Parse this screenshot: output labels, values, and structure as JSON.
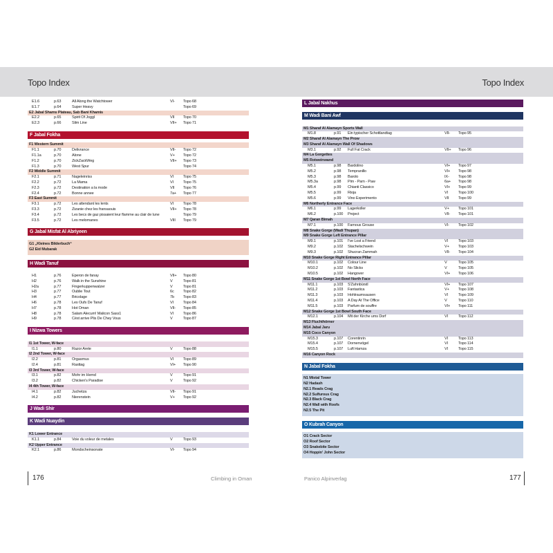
{
  "header": {
    "left_title": "Topo Index",
    "right_title": "Topo Index",
    "color": "#dcdcde"
  },
  "footer": {
    "left_page": "176",
    "left_text": "Climbing in Oman",
    "right_text": "Panico Alpinverlag",
    "right_page": "177"
  },
  "left_sections": [
    {
      "title": "",
      "color": "",
      "tint": "#f3d6cb",
      "rows": [
        {
          "type": "entry",
          "code": "E1.6",
          "page": "p.63",
          "name": "All Along the Watchtower",
          "grade": "VI-",
          "topo": "Topo 68"
        },
        {
          "type": "entry",
          "code": "E1.7",
          "page": "p.64",
          "name": "Super Heavy",
          "grade": "",
          "topo": "Topo 69"
        },
        {
          "type": "sub",
          "label": "E2 Jabal Shams Plateau, Sab Bani Khamis"
        },
        {
          "type": "entry",
          "code": "E2.2",
          "page": "p.65",
          "name": "Spirit Of Joggl",
          "grade": "VII",
          "topo": "Topo 70"
        },
        {
          "type": "entry",
          "code": "E2.3",
          "page": "p.66",
          "name": "Slim Line",
          "grade": "VII+",
          "topo": "Topo 71"
        }
      ]
    },
    {
      "title": "F Jabal Fokha",
      "color": "#b3122e",
      "tint": "#f3d6cb",
      "rows": [
        {
          "type": "sub",
          "label": "F1 Western Summit"
        },
        {
          "type": "entry",
          "code": "F1.1",
          "page": "p.70",
          "name": "Delivrance",
          "grade": "VII-",
          "topo": "Topo 72"
        },
        {
          "type": "entry",
          "code": "F1.1a",
          "page": "p.70",
          "name": "Alone",
          "grade": "V+",
          "topo": "Topo 72"
        },
        {
          "type": "entry",
          "code": "F1.2",
          "page": "p.70",
          "name": "ZickZackWeg",
          "grade": "VII+",
          "topo": "Topo 73"
        },
        {
          "type": "entry",
          "code": "F1.3",
          "page": "p.70",
          "name": "West Spur",
          "grade": "",
          "topo": "Topo 74"
        },
        {
          "type": "sub",
          "label": "F2 Middle Summit"
        },
        {
          "type": "entry",
          "code": "F2.1",
          "page": "p.71",
          "name": "Nageleinriss",
          "grade": "VI",
          "topo": "Topo 75"
        },
        {
          "type": "entry",
          "code": "F2.2",
          "page": "p.72",
          "name": "La Mama",
          "grade": "VI",
          "topo": "Topo 75"
        },
        {
          "type": "entry",
          "code": "F2.3",
          "page": "p.72",
          "name": "Destination a la mode",
          "grade": "VII",
          "topo": "Topo 76"
        },
        {
          "type": "entry",
          "code": "F2.4",
          "page": "p.72",
          "name": "Bonne annee",
          "grade": "7a+",
          "topo": "Topo 77"
        },
        {
          "type": "sub",
          "label": "F3 East Summit"
        },
        {
          "type": "entry",
          "code": "F3.1",
          "page": "p.72",
          "name": "Les attendant les lents",
          "grade": "VI",
          "topo": "Topo 78"
        },
        {
          "type": "entry",
          "code": "F3.3",
          "page": "p.72",
          "name": "Zizanie chez les fransaouis",
          "grade": "VII+",
          "topo": "Topo 78"
        },
        {
          "type": "entry",
          "code": "F3.4",
          "page": "p.72",
          "name": "Les becs de gaz pissaient leur flamme au clair de lune",
          "grade": "",
          "topo": "Topo 79"
        },
        {
          "type": "entry",
          "code": "F3.5",
          "page": "p.72",
          "name": "Les melomanes",
          "grade": "VIII",
          "topo": "Topo 79"
        }
      ]
    },
    {
      "title": "G Jabal Misfat Al Abriyeen",
      "color": "#a3132f",
      "tint": "#f0d3c6",
      "block": true,
      "rows": [
        {
          "type": "sub",
          "label": "G1 „Kleines Bilderbuch“"
        },
        {
          "type": "sub",
          "label": "G2 Eid Mubarak"
        }
      ]
    },
    {
      "title": "H Wadi Tanuf",
      "color": "#8c1240",
      "tint": "",
      "lead": true,
      "rows": [
        {
          "type": "entry",
          "code": "H1",
          "page": "p.76",
          "name": "Eperon de fanay",
          "grade": "VII+",
          "topo": "Topo 80"
        },
        {
          "type": "entry",
          "code": "H2",
          "page": "p.76",
          "name": "Walk in the Sunshine",
          "grade": "V",
          "topo": "Topo 81"
        },
        {
          "type": "entry",
          "code": "H2a",
          "page": "p.77",
          "name": "Fingerkuppenwalzer",
          "grade": "V",
          "topo": "Topo 81"
        },
        {
          "type": "entry",
          "code": "H3",
          "page": "p.77",
          "name": "Oublie Tout",
          "grade": "6c",
          "topo": "Topo 82"
        },
        {
          "type": "entry",
          "code": "H4",
          "page": "p.77",
          "name": "Bricolage",
          "grade": "7b",
          "topo": "Topo 83"
        },
        {
          "type": "entry",
          "code": "H6",
          "page": "p.78",
          "name": "Les Oufs De Tanuf",
          "grade": "VI",
          "topo": "Topo 84"
        },
        {
          "type": "entry",
          "code": "H7",
          "page": "p.78",
          "name": "Hot Oman",
          "grade": "VII-",
          "topo": "Topo 85"
        },
        {
          "type": "entry",
          "code": "H8",
          "page": "p.78",
          "name": "Salam Alecum! Malicon Sass1",
          "grade": "VI",
          "topo": "Topo 86"
        },
        {
          "type": "entry",
          "code": "H9",
          "page": "p.78",
          "name": "Cést arrive Plis De Chey Vous",
          "grade": "V",
          "topo": "Topo 87"
        }
      ]
    },
    {
      "title": "I Nizwa Towers",
      "color": "#8e1a5f",
      "tint": "#e9d6e3",
      "lead": true,
      "rows": [
        {
          "type": "sub",
          "label": "I1 1st Tower, W-face"
        },
        {
          "type": "entry",
          "code": "I1.1",
          "page": "p.80",
          "name": "Razor Arete",
          "grade": "V",
          "topo": "Topo 88"
        },
        {
          "type": "sub",
          "label": "I2 2nd Tower, W-face"
        },
        {
          "type": "entry",
          "code": "I2.2",
          "page": "p.81",
          "name": "Orgasmus",
          "grade": "VI",
          "topo": "Topo 89"
        },
        {
          "type": "entry",
          "code": "I2.4",
          "page": "p.81",
          "name": "Rasttag",
          "grade": "VI+",
          "topo": "Topo 90"
        },
        {
          "type": "sub",
          "label": "I3 3rd Tower, W-face"
        },
        {
          "type": "entry",
          "code": "I3.1",
          "page": "p.82",
          "name": "Mohr im Hemd",
          "grade": "V",
          "topo": "Topo 91"
        },
        {
          "type": "entry",
          "code": "I3.2",
          "page": "p.82",
          "name": "Chicken's Paradise",
          "grade": "V",
          "topo": "Topo 92"
        },
        {
          "type": "sub",
          "label": "I4 4th Tower, W-face"
        },
        {
          "type": "entry",
          "code": "I4.1",
          "page": "p.82",
          "name": "Juchetza",
          "grade": "VII-",
          "topo": "Topo 91"
        },
        {
          "type": "entry",
          "code": "I4.2",
          "page": "p.82",
          "name": "Nierenstein",
          "grade": "V+",
          "topo": "Topo 92"
        }
      ]
    },
    {
      "title": "J Wadi Shir",
      "color": "#7a1d71",
      "tint": "",
      "rows": []
    },
    {
      "title": "K Wadi Nuaydin",
      "color": "#5b3d7c",
      "tint": "#ddd9e8",
      "lead": true,
      "rows": [
        {
          "type": "sub",
          "label": "K1 Lower Entrance"
        },
        {
          "type": "entry",
          "code": "K1.1",
          "page": "p.84",
          "name": "Voie du voleur de metales",
          "grade": "V",
          "topo": "Topo 93"
        },
        {
          "type": "sub",
          "label": "K2 Upper Entrance"
        },
        {
          "type": "entry",
          "code": "K2.1",
          "page": "p.86",
          "name": "Mondscheinsonate",
          "grade": "VI-",
          "topo": "Topo 94"
        }
      ]
    }
  ],
  "right_sections": [
    {
      "title": "L Jabal Nakhus",
      "color": "#5b1a5f",
      "tint": "",
      "rows": []
    },
    {
      "title": "M Wadi Bani Awf",
      "color": "#1f3561",
      "tint": "#d1d0de",
      "lead": true,
      "rows": [
        {
          "type": "sub",
          "label": "M1 Sharaf Al Alamayn Sports Wall"
        },
        {
          "type": "entry",
          "code": "M1.8",
          "page": "p.91",
          "name": "Ein typischer Schottlandtag",
          "grade": "VII-",
          "topo": "Topo 95"
        },
        {
          "type": "sub",
          "label": "M2 Sharaf Al Alamayn The Prow"
        },
        {
          "type": "sub",
          "label": "M3 Sharaf Al Alamayn Wall Of Shadows"
        },
        {
          "type": "entry",
          "code": "M3.1",
          "page": "p.92",
          "name": "Full Fat Crack",
          "grade": "VII+",
          "topo": "Topo 96"
        },
        {
          "type": "sub",
          "label": "M4 La Gorgettes"
        },
        {
          "type": "sub",
          "label": "M5 Rotweinwand"
        },
        {
          "type": "entry",
          "code": "M5.1",
          "page": "p.98",
          "name": "Bardolino",
          "grade": "VI+",
          "topo": "Topo 97"
        },
        {
          "type": "entry",
          "code": "M5.2",
          "page": "p.98",
          "name": "Tempranillo",
          "grade": "VI+",
          "topo": "Topo 98"
        },
        {
          "type": "entry",
          "code": "M5.3",
          "page": "p.98",
          "name": "Barolo",
          "grade": "IX-",
          "topo": "Topo 98"
        },
        {
          "type": "entry",
          "code": "M5.3a",
          "page": "p.98",
          "name": "Pim - Pam - Paw",
          "grade": "6a+",
          "topo": "Topo 98"
        },
        {
          "type": "entry",
          "code": "M5.4",
          "page": "p.99",
          "name": "Chianti Classico",
          "grade": "VI+",
          "topo": "Topo 99"
        },
        {
          "type": "entry",
          "code": "M5.5",
          "page": "p.99",
          "name": "Rioja",
          "grade": "VI",
          "topo": "Topo 100"
        },
        {
          "type": "entry",
          "code": "M5.6",
          "page": "p.99",
          "name": "Vino Experimento",
          "grade": "VII",
          "topo": "Topo 99"
        },
        {
          "type": "sub",
          "label": "M6 Northerly Entrance Face"
        },
        {
          "type": "entry",
          "code": "M6.1",
          "page": "p.99",
          "name": "Lagerkoller",
          "grade": "V+",
          "topo": "Topo 101"
        },
        {
          "type": "entry",
          "code": "M6.2",
          "page": "p.100",
          "name": "Project",
          "grade": "VII-",
          "topo": "Topo 101"
        },
        {
          "type": "sub",
          "label": "M7 Qaran Bimah"
        },
        {
          "type": "entry",
          "code": "M7.1",
          "page": "p.100",
          "name": "Famous Grouse",
          "grade": "VI-",
          "topo": "Topo 102"
        },
        {
          "type": "sub",
          "label": "M8 Snake Gorge (Wadi Thupan)"
        },
        {
          "type": "sub",
          "label": "M9 Snake Gorge Left Entrance Pillar"
        },
        {
          "type": "entry",
          "code": "M9.1",
          "page": "p.101",
          "name": "I've Lost a Friend",
          "grade": "VI",
          "topo": "Topo 103"
        },
        {
          "type": "entry",
          "code": "M9.2",
          "page": "p.102",
          "name": "Stachelschwein",
          "grade": "V+",
          "topo": "Topo 103"
        },
        {
          "type": "entry",
          "code": "M9.3",
          "page": "p.102",
          "name": "Shucran Zammah",
          "grade": "VII-",
          "topo": "Topo 104"
        },
        {
          "type": "sub",
          "label": "M10 Snake Gorge Right Entrance Pillar"
        },
        {
          "type": "entry",
          "code": "M10.1",
          "page": "p.102",
          "name": "Colour Line",
          "grade": "V",
          "topo": "Topo 105"
        },
        {
          "type": "entry",
          "code": "M10.2",
          "page": "p.102",
          "name": "No Slicks",
          "grade": "V",
          "topo": "Topo 105"
        },
        {
          "type": "entry",
          "code": "M10.5",
          "page": "p.102",
          "name": "Hangover",
          "grade": "VI+",
          "topo": "Topo 106"
        },
        {
          "type": "sub",
          "label": "M11 Snake Gorge 1st Bowl North Face"
        },
        {
          "type": "entry",
          "code": "M11.1",
          "page": "p.103",
          "name": "S'Zahnbürstl",
          "grade": "VI+",
          "topo": "Topo 107"
        },
        {
          "type": "entry",
          "code": "M11.2",
          "page": "p.103",
          "name": "Fantastica",
          "grade": "V+",
          "topo": "Topo 108"
        },
        {
          "type": "entry",
          "code": "M11.3",
          "page": "p.103",
          "name": "Hohlraumsausen",
          "grade": "VI",
          "topo": "Topo 109"
        },
        {
          "type": "entry",
          "code": "M11.4",
          "page": "p.103",
          "name": "A Day At The Office",
          "grade": "V",
          "topo": "Topo 110"
        },
        {
          "type": "entry",
          "code": "M11.5",
          "page": "p.103",
          "name": "Parfum de souffre",
          "grade": "VI+",
          "topo": "Topo 111"
        },
        {
          "type": "sub",
          "label": "M12 Snake Gorge 1st Bowl South Face"
        },
        {
          "type": "entry",
          "code": "M12.1",
          "page": "p.104",
          "name": "Mit der Kirche ums Dorf",
          "grade": "VI",
          "topo": "Topo 112"
        },
        {
          "type": "sub",
          "label": "M13 Fluchthörner"
        },
        {
          "type": "sub",
          "label": "M14 Jabal Jaru"
        },
        {
          "type": "sub",
          "label": "M15 Coco Canyon"
        },
        {
          "type": "entry",
          "code": "M15.3",
          "page": "p.107",
          "name": "Corentinrin",
          "grade": "VI",
          "topo": "Topo 113"
        },
        {
          "type": "entry",
          "code": "M15.4",
          "page": "p.107",
          "name": "Dornenvögel",
          "grade": "VI",
          "topo": "Topo 114"
        },
        {
          "type": "entry",
          "code": "M15.5",
          "page": "p.107",
          "name": "Luft Hamza",
          "grade": "VI",
          "topo": "Topo 115"
        },
        {
          "type": "sub",
          "label": "M16 Canyon Rock"
        }
      ]
    },
    {
      "title": "N Jabal Fokha",
      "color": "#1e5b96",
      "tint": "#cdd8e8",
      "block": true,
      "rows": [
        {
          "type": "sub",
          "label": "N1 Mistal Tower"
        },
        {
          "type": "sub",
          "label": "N2 Hadash"
        },
        {
          "type": "sub",
          "label": "N2.1 Reads Crag"
        },
        {
          "type": "sub",
          "label": "N2.2 Sulfurous Crag"
        },
        {
          "type": "sub",
          "label": "N2.3 Black Crag"
        },
        {
          "type": "sub",
          "label": "N2.4 Wall with Roofs"
        },
        {
          "type": "sub",
          "label": "N2.5 The Pit"
        }
      ]
    },
    {
      "title": "O Kubrah Canyon",
      "color": "#1767a9",
      "tint": "#cdd8e8",
      "block": true,
      "rows": [
        {
          "type": "sub",
          "label": "O1 Crack Sector"
        },
        {
          "type": "sub",
          "label": "O2 Roof Sector"
        },
        {
          "type": "sub",
          "label": "O3 Snakebite Sector"
        },
        {
          "type": "sub",
          "label": "O4 Hoppin' John Sector"
        }
      ]
    }
  ]
}
